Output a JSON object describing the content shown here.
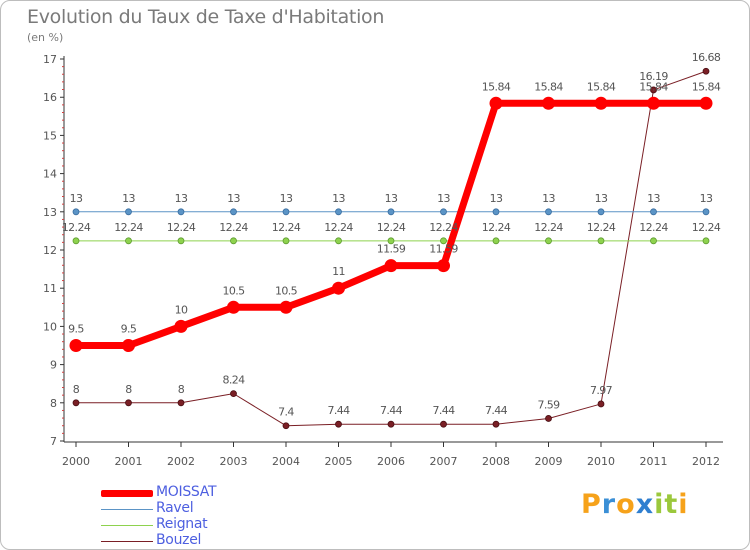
{
  "chart_data": {
    "type": "line",
    "title": "Evolution du Taux de Taxe d'Habitation",
    "subtitle": "(en %)",
    "x": [
      "2000",
      "2001",
      "2002",
      "2003",
      "2004",
      "2005",
      "2006",
      "2007",
      "2008",
      "2009",
      "2010",
      "2011",
      "2012"
    ],
    "ylim": [
      7,
      17
    ],
    "yticks": [
      "7",
      "8",
      "9",
      "10",
      "11",
      "12",
      "13",
      "14",
      "15",
      "16",
      "17"
    ],
    "grid": false,
    "legend_position": "bottom-left",
    "series": [
      {
        "name": "Bouzel",
        "color": "#7a1f25",
        "values": [
          8,
          8,
          8,
          8.24,
          7.4,
          7.44,
          7.44,
          7.44,
          7.44,
          7.59,
          7.97,
          16.19,
          16.68
        ],
        "labels": [
          "8",
          "8",
          "8",
          "8.24",
          "7.4",
          "7.44",
          "7.44",
          "7.44",
          "7.44",
          "7.59",
          "7.97",
          "16.19",
          "16.68"
        ]
      },
      {
        "name": "Reignat",
        "color": "#8ed24e",
        "values": [
          12.24,
          12.24,
          12.24,
          12.24,
          12.24,
          12.24,
          12.24,
          12.24,
          12.24,
          12.24,
          12.24,
          12.24,
          12.24
        ],
        "labels": [
          "12.24",
          "12.24",
          "12.24",
          "12.24",
          "12.24",
          "12.24",
          "12.24",
          "12.24",
          "12.24",
          "12.24",
          "12.24",
          "12.24",
          "12.24"
        ]
      },
      {
        "name": "Ravel",
        "color": "#5b94c6",
        "values": [
          13,
          13,
          13,
          13,
          13,
          13,
          13,
          13,
          13,
          13,
          13,
          13,
          13
        ],
        "labels": [
          "13",
          "13",
          "13",
          "13",
          "13",
          "13",
          "13",
          "13",
          "13",
          "13",
          "13",
          "13",
          "13"
        ]
      },
      {
        "name": "MOISSAT",
        "color": "#ff0000",
        "values": [
          9.5,
          9.5,
          10,
          10.5,
          10.5,
          11,
          11.59,
          11.59,
          15.84,
          15.84,
          15.84,
          15.84,
          15.84
        ],
        "labels": [
          "9.5",
          "9.5",
          "10",
          "10.5",
          "10.5",
          "11",
          "11.59",
          "11.59",
          "15.84",
          "15.84",
          "15.84",
          "15.84",
          "15.84"
        ]
      }
    ],
    "legend": [
      "MOISSAT",
      "Ravel",
      "Reignat",
      "Bouzel"
    ]
  },
  "logo": {
    "letters": [
      "P",
      "r",
      "o",
      "x",
      "i",
      "t",
      "i"
    ],
    "colors": [
      "#f6a21a",
      "#3a8fd6",
      "#f6a21a",
      "#2f7fd0",
      "#9bc83c",
      "#9bc83c",
      "#f6a21a"
    ]
  }
}
